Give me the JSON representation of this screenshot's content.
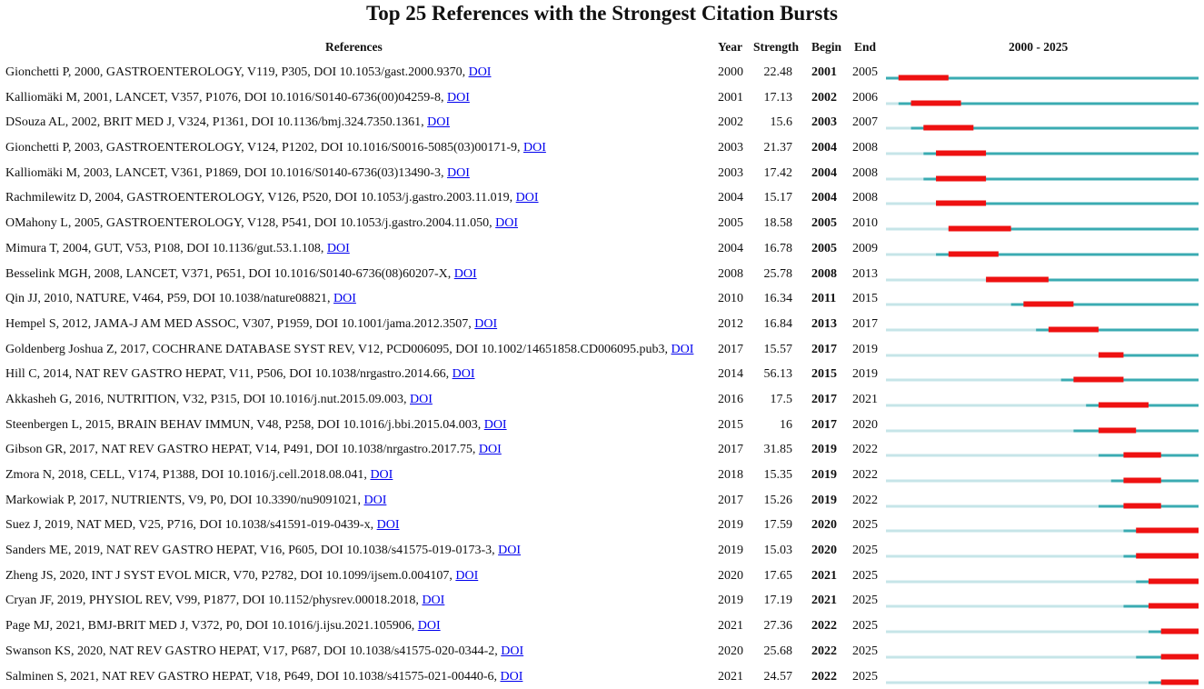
{
  "title": "Top 25 References with the Strongest Citation Bursts",
  "headers": {
    "references": "References",
    "year": "Year",
    "strength": "Strength",
    "begin": "Begin",
    "end": "End",
    "range": "2000 - 2025"
  },
  "colors": {
    "burst": "#ee1111",
    "active": "#3aabb2",
    "inactive": "#c6e5e8"
  },
  "chart_data": {
    "type": "table",
    "title": "Top 25 References with the Strongest Citation Bursts",
    "columns": [
      "References",
      "Year",
      "Strength",
      "Begin",
      "End",
      "2000 - 2025"
    ],
    "range_start": 2000,
    "range_end": 2025,
    "rows": [
      {
        "ref": "Gionchetti P, 2000, GASTROENTEROLOGY, V119, P305, DOI 10.1053/gast.2000.9370,",
        "link": "DOI",
        "year": "2000",
        "strength": "22.48",
        "begin": "2001",
        "end": "2005"
      },
      {
        "ref": "Kalliomäki M, 2001, LANCET, V357, P1076, DOI 10.1016/S0140-6736(00)04259-8,",
        "link": "DOI",
        "year": "2001",
        "strength": "17.13",
        "begin": "2002",
        "end": "2006"
      },
      {
        "ref": "DSouza AL, 2002, BRIT MED J, V324, P1361, DOI 10.1136/bmj.324.7350.1361,",
        "link": "DOI",
        "year": "2002",
        "strength": "15.6",
        "begin": "2003",
        "end": "2007"
      },
      {
        "ref": "Gionchetti P, 2003, GASTROENTEROLOGY, V124, P1202, DOI 10.1016/S0016-5085(03)00171-9,",
        "link": "DOI",
        "year": "2003",
        "strength": "21.37",
        "begin": "2004",
        "end": "2008"
      },
      {
        "ref": "Kalliomäki M, 2003, LANCET, V361, P1869, DOI 10.1016/S0140-6736(03)13490-3,",
        "link": "DOI",
        "year": "2003",
        "strength": "17.42",
        "begin": "2004",
        "end": "2008"
      },
      {
        "ref": "Rachmilewitz D, 2004, GASTROENTEROLOGY, V126, P520, DOI 10.1053/j.gastro.2003.11.019,",
        "link": "DOI",
        "year": "2004",
        "strength": "15.17",
        "begin": "2004",
        "end": "2008"
      },
      {
        "ref": "OMahony L, 2005, GASTROENTEROLOGY, V128, P541, DOI 10.1053/j.gastro.2004.11.050,",
        "link": "DOI",
        "year": "2005",
        "strength": "18.58",
        "begin": "2005",
        "end": "2010"
      },
      {
        "ref": "Mimura T, 2004, GUT, V53, P108, DOI 10.1136/gut.53.1.108,",
        "link": "DOI",
        "year": "2004",
        "strength": "16.78",
        "begin": "2005",
        "end": "2009"
      },
      {
        "ref": "Besselink MGH, 2008, LANCET, V371, P651, DOI 10.1016/S0140-6736(08)60207-X,",
        "link": "DOI",
        "year": "2008",
        "strength": "25.78",
        "begin": "2008",
        "end": "2013"
      },
      {
        "ref": "Qin JJ, 2010, NATURE, V464, P59, DOI 10.1038/nature08821,",
        "link": "DOI",
        "year": "2010",
        "strength": "16.34",
        "begin": "2011",
        "end": "2015"
      },
      {
        "ref": "Hempel S, 2012, JAMA-J AM MED ASSOC, V307, P1959, DOI 10.1001/jama.2012.3507,",
        "link": "DOI",
        "year": "2012",
        "strength": "16.84",
        "begin": "2013",
        "end": "2017"
      },
      {
        "ref": "Goldenberg Joshua Z, 2017, COCHRANE DATABASE SYST REV, V12, PCD006095, DOI 10.1002/14651858.CD006095.pub3,",
        "link": "DOI",
        "year": "2017",
        "strength": "15.57",
        "begin": "2017",
        "end": "2019"
      },
      {
        "ref": "Hill C, 2014, NAT REV GASTRO HEPAT, V11, P506, DOI 10.1038/nrgastro.2014.66,",
        "link": "DOI",
        "year": "2014",
        "strength": "56.13",
        "begin": "2015",
        "end": "2019"
      },
      {
        "ref": "Akkasheh G, 2016, NUTRITION, V32, P315, DOI 10.1016/j.nut.2015.09.003,",
        "link": "DOI",
        "year": "2016",
        "strength": "17.5",
        "begin": "2017",
        "end": "2021"
      },
      {
        "ref": "Steenbergen L, 2015, BRAIN BEHAV IMMUN, V48, P258, DOI 10.1016/j.bbi.2015.04.003,",
        "link": "DOI",
        "year": "2015",
        "strength": "16",
        "begin": "2017",
        "end": "2020"
      },
      {
        "ref": "Gibson GR, 2017, NAT REV GASTRO HEPAT, V14, P491, DOI 10.1038/nrgastro.2017.75,",
        "link": "DOI",
        "year": "2017",
        "strength": "31.85",
        "begin": "2019",
        "end": "2022"
      },
      {
        "ref": "Zmora N, 2018, CELL, V174, P1388, DOI 10.1016/j.cell.2018.08.041,",
        "link": "DOI",
        "year": "2018",
        "strength": "15.35",
        "begin": "2019",
        "end": "2022"
      },
      {
        "ref": "Markowiak P, 2017, NUTRIENTS, V9, P0, DOI 10.3390/nu9091021,",
        "link": "DOI",
        "year": "2017",
        "strength": "15.26",
        "begin": "2019",
        "end": "2022"
      },
      {
        "ref": "Suez J, 2019, NAT MED, V25, P716, DOI 10.1038/s41591-019-0439-x,",
        "link": "DOI",
        "year": "2019",
        "strength": "17.59",
        "begin": "2020",
        "end": "2025"
      },
      {
        "ref": "Sanders ME, 2019, NAT REV GASTRO HEPAT, V16, P605, DOI 10.1038/s41575-019-0173-3,",
        "link": "DOI",
        "year": "2019",
        "strength": "15.03",
        "begin": "2020",
        "end": "2025"
      },
      {
        "ref": "Zheng JS, 2020, INT J SYST EVOL MICR, V70, P2782, DOI 10.1099/ijsem.0.004107,",
        "link": "DOI",
        "year": "2020",
        "strength": "17.65",
        "begin": "2021",
        "end": "2025"
      },
      {
        "ref": "Cryan JF, 2019, PHYSIOL REV, V99, P1877, DOI 10.1152/physrev.00018.2018,",
        "link": "DOI",
        "year": "2019",
        "strength": "17.19",
        "begin": "2021",
        "end": "2025"
      },
      {
        "ref": "Page MJ, 2021, BMJ-BRIT MED J, V372, P0, DOI 10.1016/j.ijsu.2021.105906,",
        "link": "DOI",
        "year": "2021",
        "strength": "27.36",
        "begin": "2022",
        "end": "2025"
      },
      {
        "ref": "Swanson KS, 2020, NAT REV GASTRO HEPAT, V17, P687, DOI 10.1038/s41575-020-0344-2,",
        "link": "DOI",
        "year": "2020",
        "strength": "25.68",
        "begin": "2022",
        "end": "2025"
      },
      {
        "ref": "Salminen S, 2021, NAT REV GASTRO HEPAT, V18, P649, DOI 10.1038/s41575-021-00440-6,",
        "link": "DOI",
        "year": "2021",
        "strength": "24.57",
        "begin": "2022",
        "end": "2025"
      }
    ]
  }
}
